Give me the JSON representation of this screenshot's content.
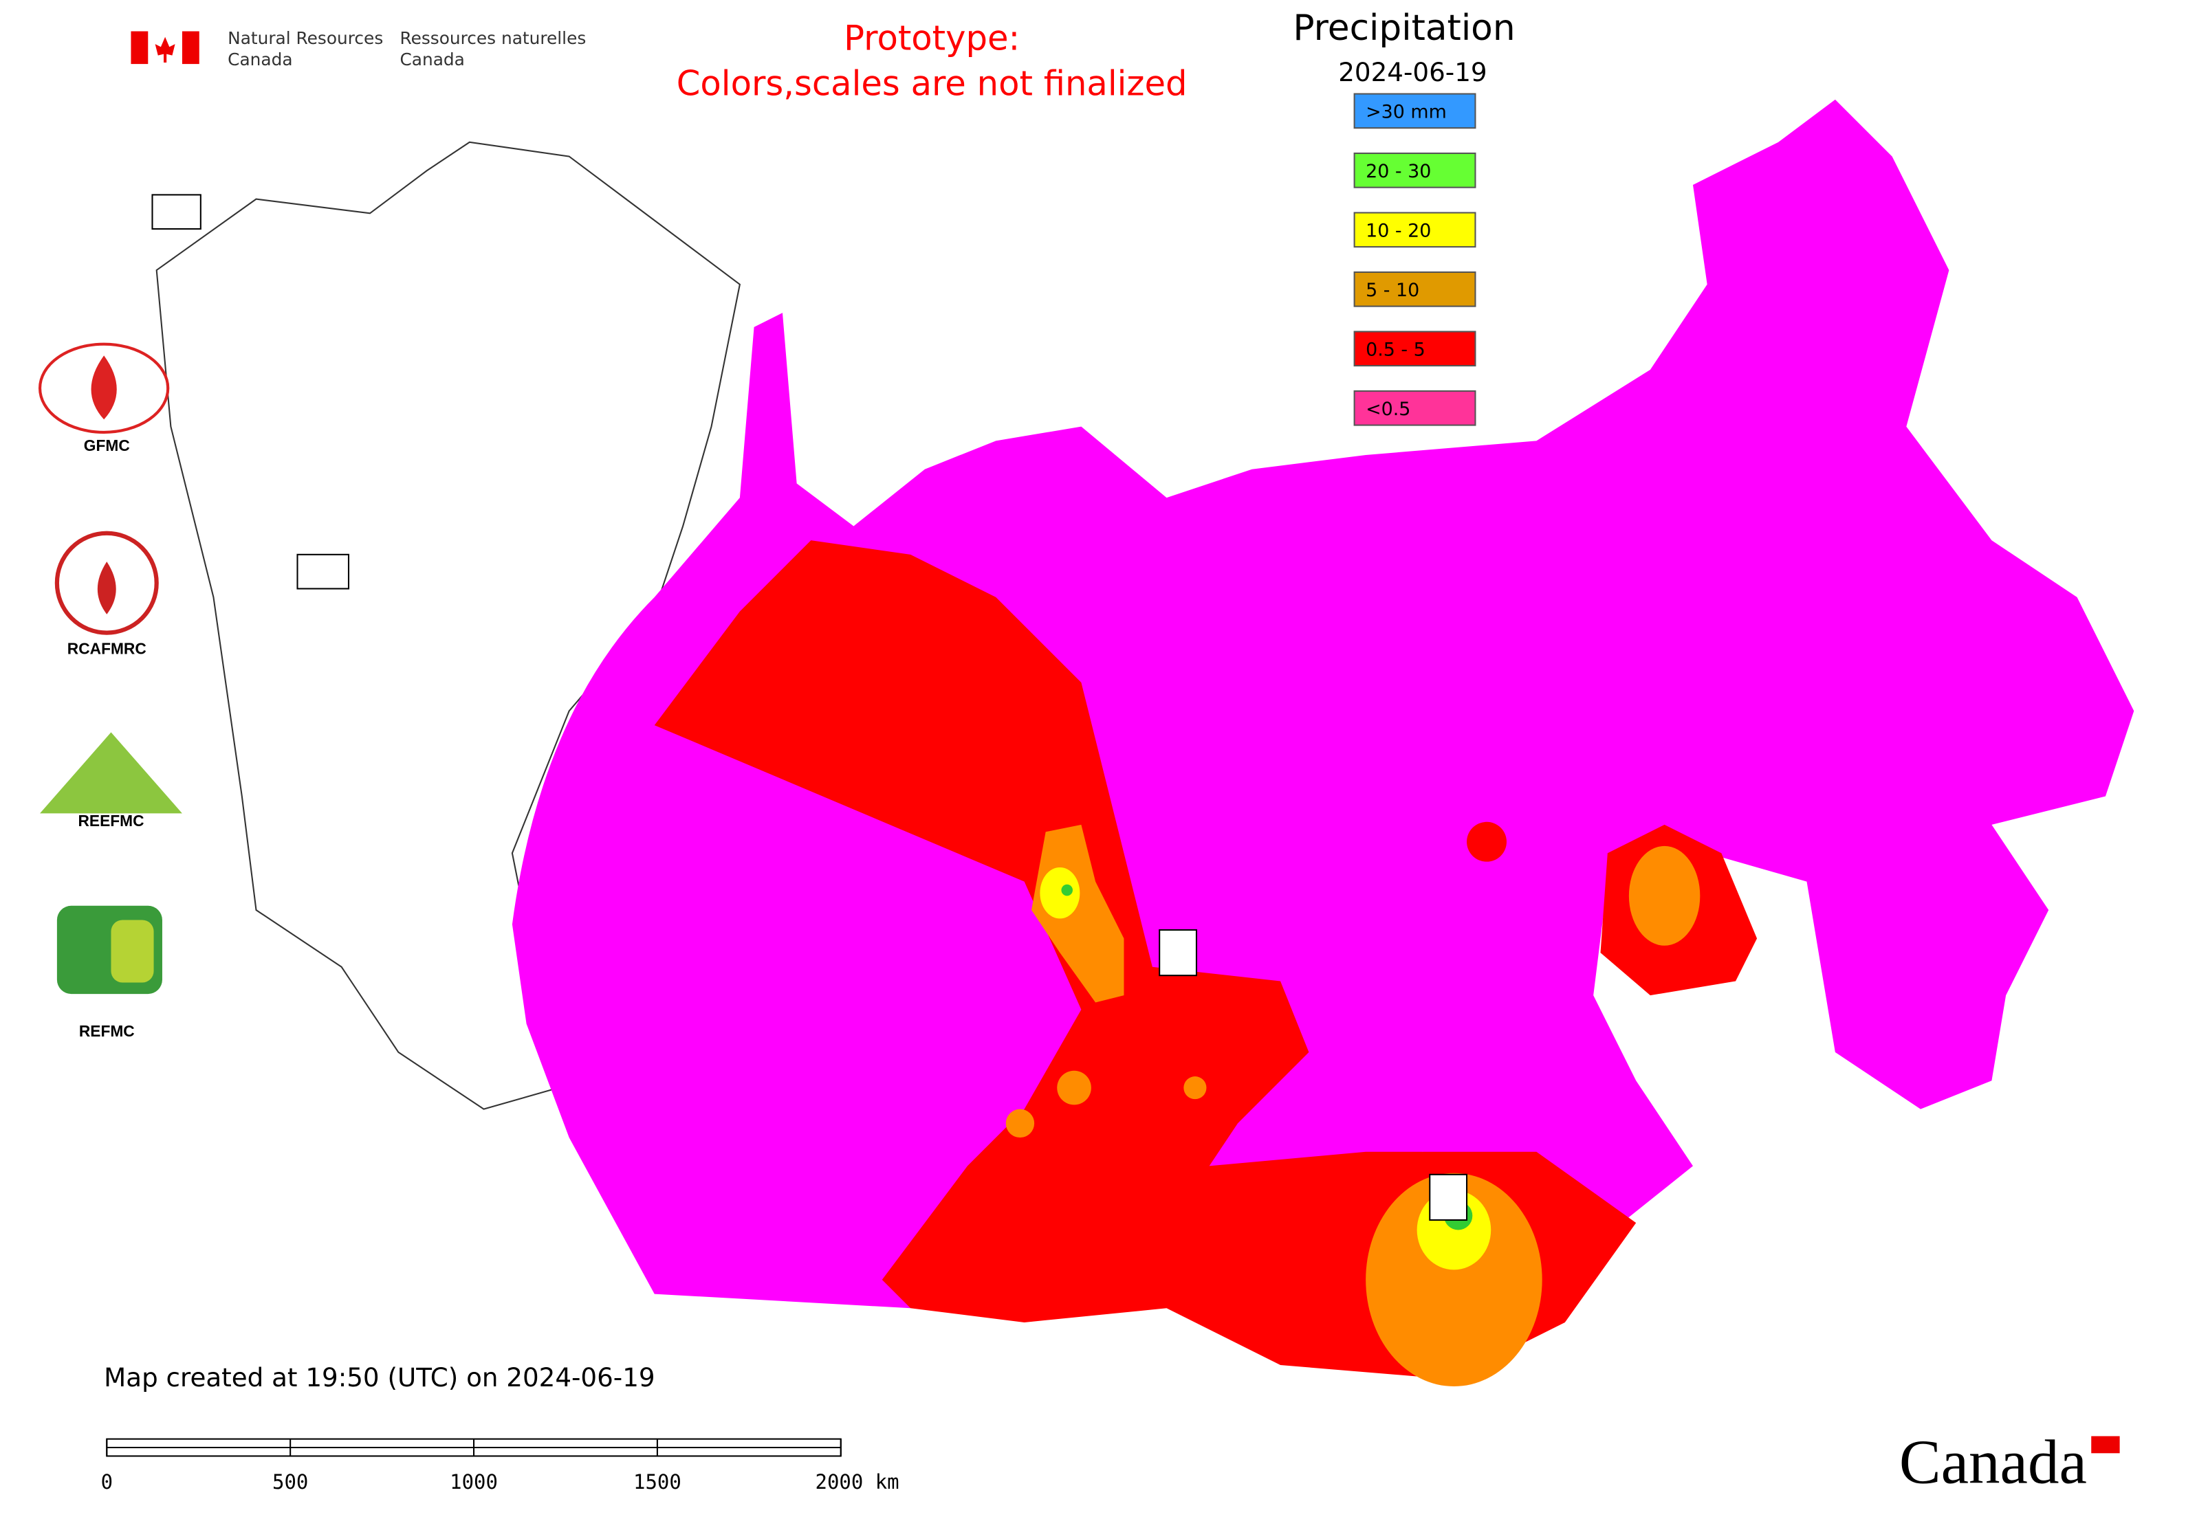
{
  "header": {
    "org_en": [
      "Natural Resources",
      "Canada"
    ],
    "org_fr": [
      "Ressources naturelles",
      "Canada"
    ],
    "notice": [
      "Prototype:",
      "Colors,scales are not finalized"
    ]
  },
  "legend": {
    "title": "Precipitation",
    "date": "2024-06-19",
    "items": [
      {
        "label": ">30 mm",
        "color": "#3399ff"
      },
      {
        "label": "20 - 30",
        "color": "#66ff33"
      },
      {
        "label": "10 - 20",
        "color": "#ffff00"
      },
      {
        "label": "5 - 10",
        "color": "#e09a00"
      },
      {
        "label": "0.5 - 5",
        "color": "#ff0000"
      },
      {
        "label": "<0.5",
        "color": "#ff3399"
      }
    ]
  },
  "centers": {
    "gfmc": "GFMC",
    "rcafmrc": "RCAFMRC",
    "reefmc_logo": "REEFMC",
    "refmc": "REFMC"
  },
  "footer": {
    "created": "Map created at 19:50 (UTC) on 2024-06-19",
    "scale_labels": [
      "0",
      "500",
      "1000",
      "1500",
      "2000 km"
    ],
    "wordmark": "Canada"
  }
}
